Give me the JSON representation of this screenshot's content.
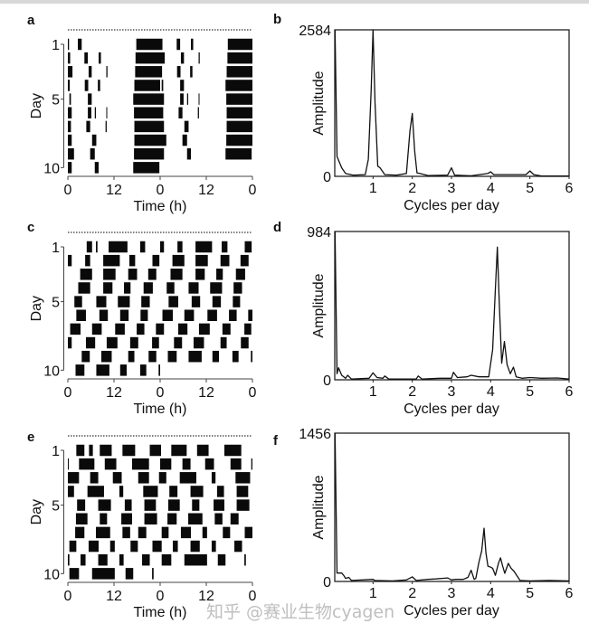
{
  "watermark": "知乎 @赛业生物cyagen",
  "colors": {
    "ink": "#111111",
    "background": "#ffffff"
  },
  "chart_data": [
    {
      "panel": "a",
      "type": "actogram",
      "double_plotted": true,
      "xlabel": "Time (h)",
      "xticks": [
        "0",
        "12",
        "0",
        "12",
        "0"
      ],
      "ylabel": "Day",
      "yticks": [
        "1",
        "5",
        "10"
      ],
      "days_bouts_h": [
        [
          [
            0,
            0.3
          ],
          [
            2.6,
            3.6
          ],
          [
            17.8,
            24
          ]
        ],
        [
          [
            0,
            0.6
          ],
          [
            4.3,
            5.2
          ],
          [
            8,
            8.6
          ],
          [
            17.6,
            24
          ]
        ],
        [
          [
            0,
            1.2
          ],
          [
            5.4,
            6.2
          ],
          [
            10,
            10.3
          ],
          [
            17.5,
            24
          ]
        ],
        [
          [
            0,
            0.5
          ],
          [
            4.4,
            5.3
          ],
          [
            7.8,
            8.4
          ],
          [
            17.3,
            24
          ]
        ],
        [
          [
            0.4,
            0.8
          ],
          [
            5.2,
            6.2
          ],
          [
            17,
            24
          ]
        ],
        [
          [
            0,
            1
          ],
          [
            5.2,
            6.1
          ],
          [
            7,
            7.3
          ],
          [
            10,
            10.2
          ],
          [
            17.2,
            24
          ]
        ],
        [
          [
            0,
            0.8
          ],
          [
            4.8,
            5.8
          ],
          [
            9.8,
            10.1
          ],
          [
            17.3,
            24
          ]
        ],
        [
          [
            0,
            1
          ],
          [
            6.3,
            7.4
          ],
          [
            17.3,
            24
          ]
        ],
        [
          [
            0,
            1.6
          ],
          [
            5.8,
            7
          ],
          [
            17.2,
            24
          ]
        ],
        [
          [
            0,
            1
          ],
          [
            7,
            8
          ],
          [
            17,
            23.8
          ]
        ]
      ]
    },
    {
      "panel": "b",
      "type": "line",
      "xlabel": "Cycles per day",
      "ylabel": "Amplitude",
      "xlim": [
        0,
        6
      ],
      "ylim": [
        0,
        2584
      ],
      "xticks": [
        "1",
        "2",
        "3",
        "4",
        "5",
        "6"
      ],
      "yticks": [
        "0",
        "2584"
      ],
      "x": [
        0.03,
        0.08,
        0.2,
        0.3,
        0.5,
        0.8,
        0.88,
        0.95,
        1.0,
        1.05,
        1.12,
        1.18,
        1.3,
        1.6,
        1.85,
        1.94,
        2.0,
        2.06,
        2.12,
        2.2,
        2.4,
        2.9,
        3.0,
        3.08,
        3.5,
        3.92,
        4.0,
        4.08,
        4.9,
        5.0,
        5.1,
        5.3,
        6.0
      ],
      "y": [
        2584,
        350,
        150,
        50,
        20,
        30,
        300,
        1500,
        2584,
        1300,
        180,
        150,
        30,
        20,
        50,
        800,
        1110,
        450,
        60,
        50,
        15,
        20,
        150,
        20,
        10,
        50,
        80,
        30,
        30,
        95,
        30,
        5,
        5
      ]
    },
    {
      "panel": "c",
      "type": "actogram",
      "double_plotted": true,
      "xlabel": "Time (h)",
      "xticks": [
        "0",
        "12",
        "0",
        "12",
        "0"
      ],
      "ylabel": "Day",
      "yticks": [
        "1",
        "5",
        "10"
      ],
      "days_bouts_h": [
        [
          [
            4.9,
            6.3
          ],
          [
            7.3,
            7.7
          ],
          [
            10.6,
            15.5
          ],
          [
            18.8,
            20.1
          ]
        ],
        [
          [
            0,
            1
          ],
          [
            4.5,
            5.8
          ],
          [
            9.2,
            13.5
          ],
          [
            16,
            17.5
          ],
          [
            22,
            23.8
          ]
        ],
        [
          [
            3.2,
            6.3
          ],
          [
            9.2,
            12.4
          ],
          [
            15.7,
            18
          ],
          [
            20.9,
            23
          ]
        ],
        [
          [
            2.7,
            5.8
          ],
          [
            9.2,
            11.6
          ],
          [
            14.6,
            16.3
          ],
          [
            19.7,
            22.1
          ]
        ],
        [
          [
            1.7,
            3.7
          ],
          [
            7.4,
            10
          ],
          [
            13,
            16.1
          ],
          [
            19.1,
            21.3
          ]
        ],
        [
          [
            2.2,
            4.7
          ],
          [
            8.2,
            10.4
          ],
          [
            13.6,
            15.8
          ],
          [
            18.9,
            20.8
          ]
        ],
        [
          [
            0.6,
            3.3
          ],
          [
            6.3,
            8.8
          ],
          [
            12.3,
            14.8
          ],
          [
            17.9,
            19.9
          ],
          [
            22.9,
            24
          ]
        ],
        [
          [
            0,
            1
          ],
          [
            4.7,
            7.1
          ],
          [
            10.1,
            12.9
          ],
          [
            16.2,
            18.3
          ],
          [
            21.9,
            23.7
          ]
        ],
        [
          [
            3.6,
            5.7
          ],
          [
            8.7,
            11.4
          ],
          [
            15.7,
            17.3
          ],
          [
            21,
            23
          ]
        ],
        [
          [
            2,
            4.3
          ],
          [
            7.4,
            10.8
          ],
          [
            13.6,
            15.3
          ],
          [
            18.8,
            20.4
          ],
          [
            23.6,
            24
          ]
        ]
      ]
    },
    {
      "panel": "d",
      "type": "line",
      "xlabel": "Cycles per day",
      "ylabel": "Amplitude",
      "xlim": [
        0,
        6
      ],
      "ylim": [
        0,
        984
      ],
      "xticks": [
        "1",
        "2",
        "3",
        "4",
        "5",
        "6"
      ],
      "yticks": [
        "0",
        "984"
      ],
      "x": [
        0.03,
        0.08,
        0.12,
        0.2,
        0.3,
        0.35,
        0.45,
        0.9,
        1.0,
        1.1,
        1.25,
        1.3,
        1.4,
        2.1,
        2.15,
        2.25,
        2.7,
        3.0,
        3.05,
        3.15,
        3.4,
        3.5,
        3.7,
        3.95,
        4.05,
        4.12,
        4.17,
        4.22,
        4.28,
        4.35,
        4.42,
        4.5,
        4.58,
        4.65,
        4.8,
        5.0,
        5.3,
        5.7,
        6.0
      ],
      "y": [
        984,
        40,
        80,
        30,
        10,
        30,
        5,
        10,
        46,
        15,
        10,
        25,
        5,
        5,
        25,
        5,
        10,
        10,
        50,
        15,
        20,
        30,
        20,
        20,
        200,
        600,
        880,
        500,
        110,
        254,
        100,
        40,
        84,
        20,
        10,
        15,
        10,
        12,
        5
      ]
    },
    {
      "panel": "e",
      "type": "actogram",
      "double_plotted": true,
      "xlabel": "Time (h)",
      "xticks": [
        "0",
        "12",
        "0",
        "12",
        "0"
      ],
      "ylabel": "Day",
      "yticks": [
        "1",
        "5",
        "10"
      ],
      "days_bouts_h": [
        [
          [
            2.2,
            4.3
          ],
          [
            5.5,
            6.5
          ],
          [
            8.3,
            11.4
          ],
          [
            14.2,
            17.5
          ],
          [
            21.3,
            24
          ]
        ],
        [
          [
            0,
            0.2
          ],
          [
            2.9,
            6.9
          ],
          [
            9.6,
            12.6
          ],
          [
            16.7,
            21.1
          ]
        ],
        [
          [
            0,
            2.9
          ],
          [
            5.8,
            7.9
          ],
          [
            11.7,
            14
          ],
          [
            18.3,
            21.1
          ],
          [
            23.7,
            24
          ]
        ],
        [
          [
            0,
            1.6
          ],
          [
            5.1,
            9.4
          ],
          [
            13.4,
            14.4
          ],
          [
            19.6,
            23.4
          ]
        ],
        [
          [
            2.4,
            4.5
          ],
          [
            7.9,
            11.2
          ],
          [
            14.8,
            16.6
          ],
          [
            19.9,
            22.9
          ]
        ],
        [
          [
            2.1,
            5.1
          ],
          [
            8.3,
            10.2
          ],
          [
            13.9,
            16.7
          ],
          [
            19.9,
            23.2
          ]
        ],
        [
          [
            1.9,
            4.3
          ],
          [
            7.3,
            11
          ],
          [
            14.2,
            16.2
          ],
          [
            18.3,
            20.4
          ]
        ],
        [
          [
            0.4,
            2.2
          ],
          [
            5.4,
            8
          ],
          [
            11,
            12.2
          ],
          [
            16.3,
            18.2
          ],
          [
            22,
            24
          ]
        ],
        [
          [
            0,
            0.4
          ],
          [
            3.3,
            4.6
          ],
          [
            7.9,
            10.3
          ],
          [
            13.4,
            14.5
          ],
          [
            19.3,
            21.3
          ]
        ],
        [
          [
            0.4,
            2.9
          ],
          [
            6.3,
            12.2
          ],
          [
            15,
            17
          ],
          [
            21.9,
            22.3
          ]
        ]
      ]
    },
    {
      "panel": "f",
      "type": "line",
      "xlabel": "Cycles per day",
      "ylabel": "Amplitude",
      "xlim": [
        0,
        6
      ],
      "ylim": [
        0,
        1456
      ],
      "xticks": [
        "1",
        "2",
        "3",
        "4",
        "5",
        "6"
      ],
      "yticks": [
        "0",
        "1456"
      ],
      "x": [
        0.03,
        0.08,
        0.2,
        0.25,
        0.3,
        0.38,
        0.45,
        1.0,
        1.05,
        1.5,
        1.85,
        2.0,
        2.1,
        2.4,
        2.6,
        2.9,
        3.0,
        3.1,
        3.3,
        3.42,
        3.5,
        3.58,
        3.62,
        3.7,
        3.77,
        3.83,
        3.88,
        3.93,
        4.0,
        4.05,
        4.12,
        4.2,
        4.25,
        4.3,
        4.36,
        4.45,
        4.52,
        4.6,
        4.68,
        4.75,
        5.0,
        5.5,
        6.0
      ],
      "y": [
        1456,
        83,
        83,
        60,
        30,
        40,
        10,
        20,
        10,
        5,
        15,
        45,
        10,
        20,
        25,
        35,
        15,
        20,
        20,
        40,
        110,
        20,
        30,
        187,
        300,
        523,
        280,
        150,
        140,
        130,
        60,
        180,
        232,
        160,
        80,
        178,
        130,
        98,
        50,
        10,
        5,
        10,
        5
      ]
    }
  ]
}
